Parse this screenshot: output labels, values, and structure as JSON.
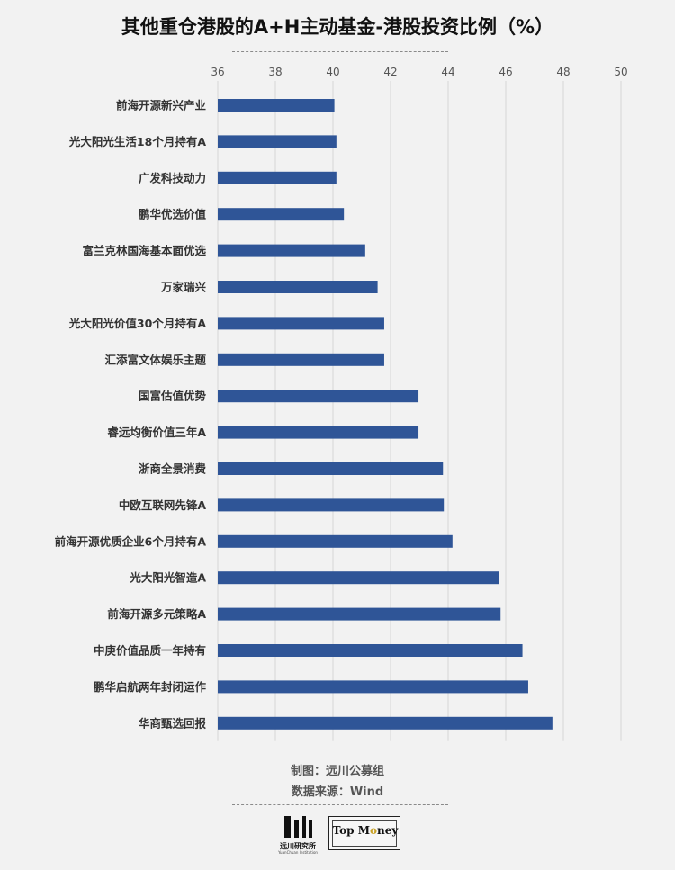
{
  "title": "其他重仓港股的A+H主动基金-港股投资比例（%）",
  "credits": {
    "made_by": "制图：远川公募组",
    "source": "数据来源：Wind"
  },
  "logos": {
    "left_name": "远川研究所",
    "left_sub": "YuanChuan Institution",
    "right_text_a": "Top M",
    "right_text_b": "ney"
  },
  "colors": {
    "bar": "#2f5597",
    "grid": "#d6d6d6",
    "background": "#f2f2f2"
  },
  "chart_data": {
    "type": "bar",
    "orientation": "horizontal",
    "title": "其他重仓港股的A+H主动基金-港股投资比例（%）",
    "xlim": [
      36,
      50
    ],
    "ticks": [
      36,
      38,
      40,
      42,
      44,
      46,
      48,
      50
    ],
    "grid": true,
    "categories": [
      "前海开源新兴产业",
      "光大阳光生活18个月持有A",
      "广发科技动力",
      "鹏华优选价值",
      "富兰克林国海基本面优选",
      "万家瑞兴",
      "光大阳光价值30个月持有A",
      "汇添富文体娱乐主题",
      "国富估值优势",
      "睿远均衡价值三年A",
      "浙商全景消费",
      "中欧互联网先锋A",
      "前海开源优质企业6个月持有A",
      "光大阳光智造A",
      "前海开源多元策略A",
      "中庚价值品质一年持有",
      "鹏华启航两年封闭运作",
      "华商甄选回报"
    ],
    "values": [
      40.05,
      40.12,
      40.12,
      40.38,
      41.12,
      41.55,
      41.78,
      41.78,
      42.97,
      42.97,
      43.82,
      43.85,
      44.15,
      45.75,
      45.82,
      46.58,
      46.78,
      47.62
    ]
  }
}
